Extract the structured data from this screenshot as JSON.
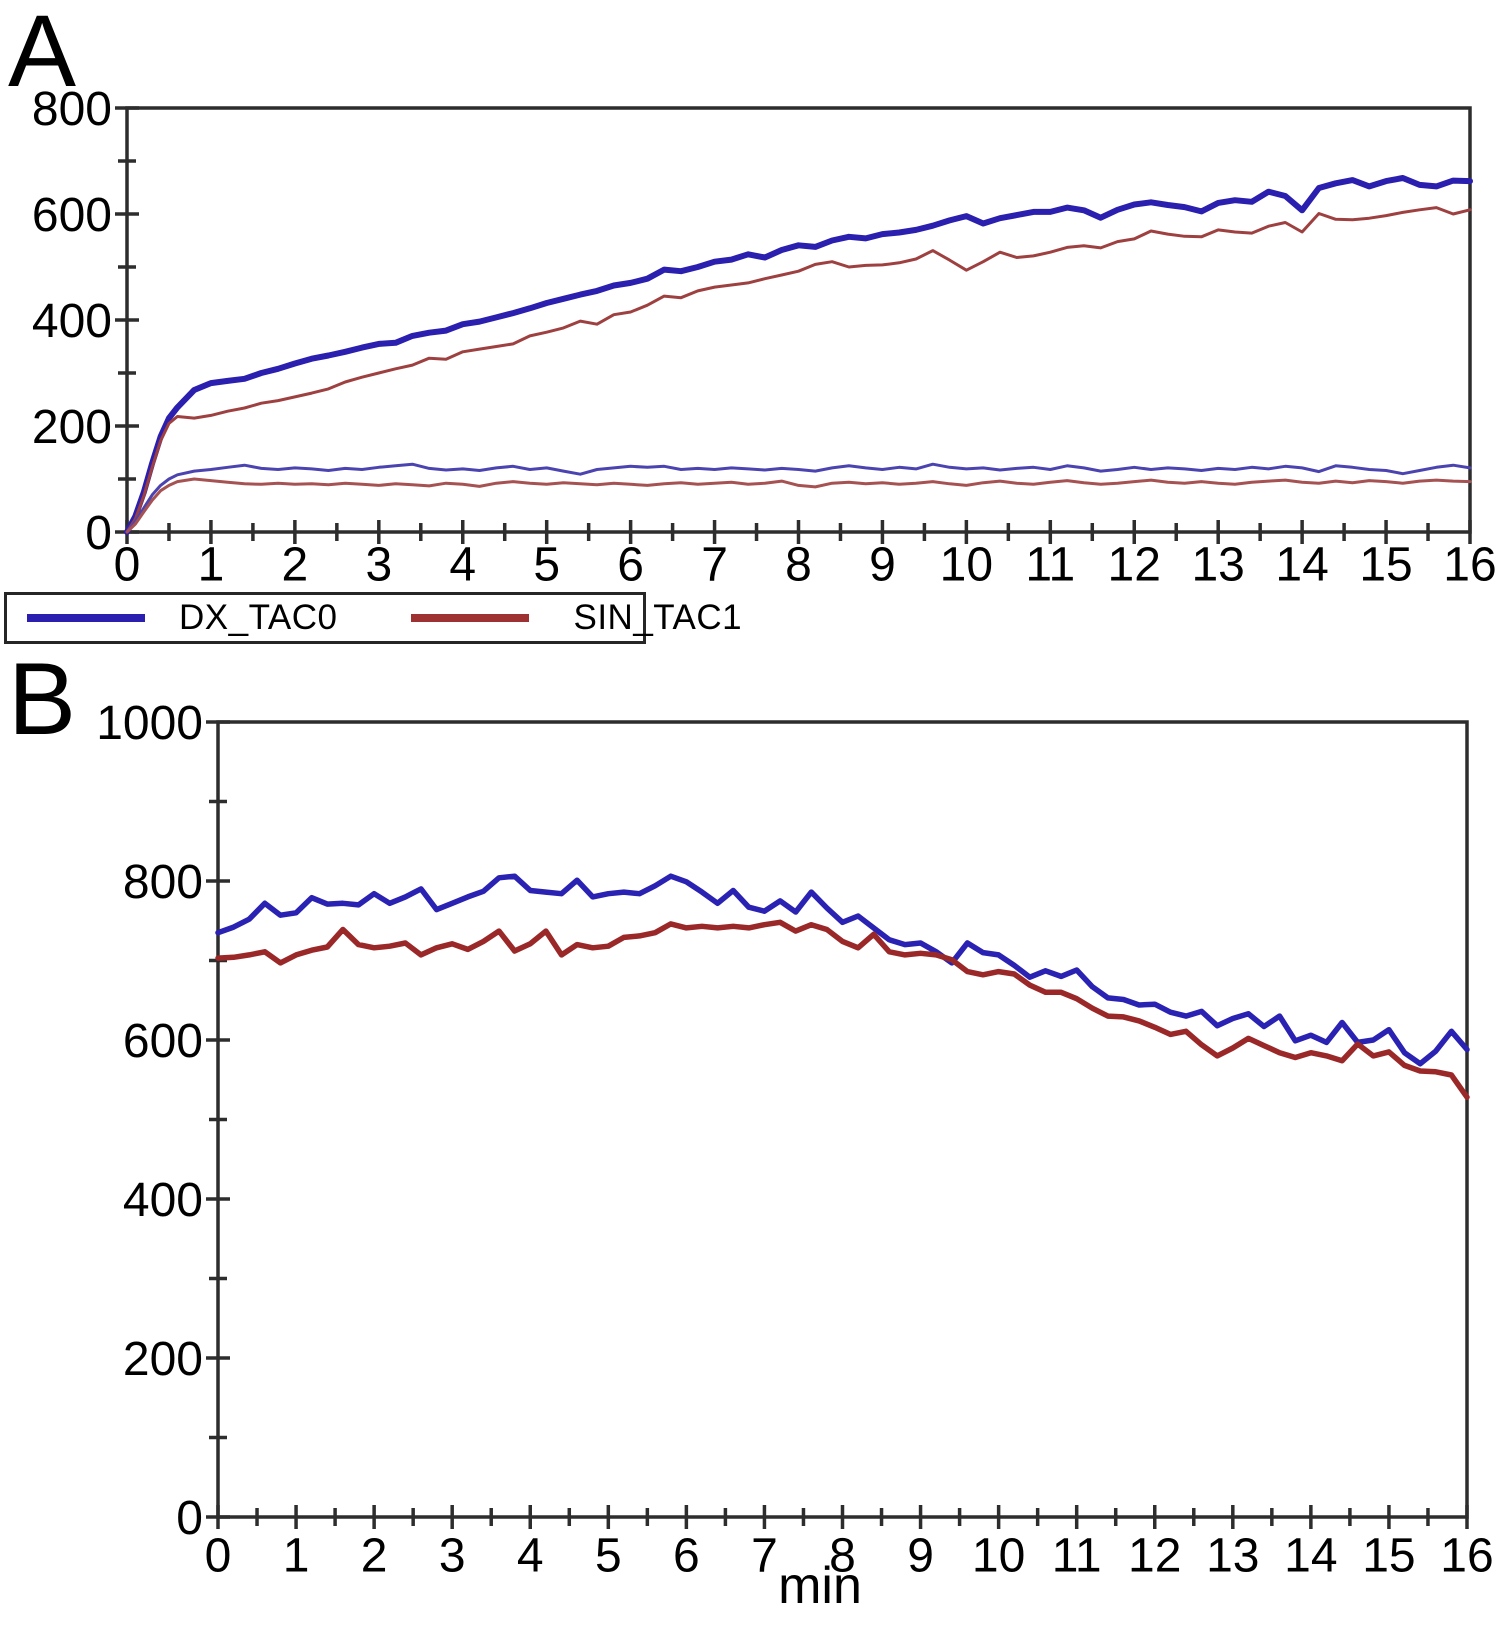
{
  "figure": {
    "panels": [
      {
        "label": "A"
      },
      {
        "label": "B"
      }
    ],
    "legend": {
      "items": [
        {
          "label": "DX_TAC0",
          "color": "#2a1fae"
        },
        {
          "label": "SIN_TAC1",
          "color": "#9e3232"
        }
      ]
    }
  },
  "chart_data": [
    {
      "type": "line",
      "panel": "A",
      "title": "",
      "xlabel": "",
      "ylabel": "",
      "xlim": [
        0,
        16
      ],
      "ylim": [
        0,
        800
      ],
      "x_tick_step": 1,
      "x_minor_step": 0.5,
      "y_minor_step": 100,
      "y_label_step": 200,
      "x_tick_labels": [
        "0",
        "1",
        "2",
        "3",
        "4",
        "5",
        "6",
        "7",
        "8",
        "9",
        "10",
        "11",
        "12",
        "13",
        "14",
        "15",
        "16"
      ],
      "y_tick_labels": [
        "0",
        "200",
        "400",
        "600",
        "800"
      ],
      "grid": false,
      "legend_position": "below-left",
      "x": [
        0,
        0.1,
        0.2,
        0.3,
        0.4,
        0.5,
        0.6,
        0.8,
        1,
        1.2,
        1.4,
        1.6,
        1.8,
        2,
        2.2,
        2.4,
        2.6,
        2.8,
        3,
        3.2,
        3.4,
        3.6,
        3.8,
        4,
        4.2,
        4.4,
        4.6,
        4.8,
        5,
        5.2,
        5.4,
        5.6,
        5.8,
        6,
        6.2,
        6.4,
        6.6,
        6.8,
        7,
        7.2,
        7.4,
        7.6,
        7.8,
        8,
        8.2,
        8.4,
        8.6,
        8.8,
        9,
        9.2,
        9.4,
        9.6,
        9.8,
        10,
        10.2,
        10.4,
        10.6,
        10.8,
        11,
        11.2,
        11.4,
        11.6,
        11.8,
        12,
        12.2,
        12.4,
        12.6,
        12.8,
        13,
        13.2,
        13.4,
        13.6,
        13.8,
        14,
        14.2,
        14.4,
        14.6,
        14.8,
        15,
        15.2,
        15.4,
        15.6,
        15.8,
        16
      ],
      "series": [
        {
          "name": "DX_TAC0",
          "color": "#2a1fae",
          "width": 6,
          "values": [
            0,
            30,
            75,
            130,
            180,
            215,
            235,
            268,
            281,
            285,
            289,
            300,
            308,
            318,
            327,
            333,
            340,
            348,
            355,
            357,
            370,
            376,
            380,
            392,
            397,
            405,
            413,
            422,
            432,
            440,
            448,
            455,
            465,
            470,
            478,
            495,
            492,
            500,
            510,
            514,
            524,
            518,
            532,
            541,
            538,
            550,
            557,
            554,
            562,
            565,
            570,
            578,
            588,
            596,
            582,
            592,
            598,
            604,
            604,
            612,
            607,
            593,
            608,
            618,
            622,
            617,
            613,
            605,
            621,
            626,
            623,
            642,
            634,
            607,
            649,
            658,
            664,
            652,
            662,
            668,
            655,
            652,
            663,
            662
          ]
        },
        {
          "name": "SIN_TAC1",
          "color": "#9e4040",
          "width": 3,
          "values": [
            0,
            25,
            68,
            122,
            172,
            205,
            218,
            215,
            220,
            228,
            234,
            243,
            248,
            255,
            262,
            270,
            283,
            292,
            300,
            308,
            315,
            328,
            326,
            340,
            345,
            350,
            355,
            370,
            377,
            385,
            398,
            392,
            410,
            415,
            428,
            445,
            442,
            455,
            462,
            466,
            470,
            478,
            485,
            492,
            505,
            510,
            500,
            503,
            504,
            508,
            515,
            531,
            513,
            494,
            510,
            528,
            518,
            521,
            528,
            537,
            540,
            536,
            548,
            553,
            568,
            562,
            558,
            557,
            570,
            566,
            564,
            577,
            584,
            566,
            601,
            590,
            589,
            592,
            597,
            603,
            608,
            612,
            600,
            608
          ]
        },
        {
          "name": "unlabeled_blue_low",
          "color": "#4b44b0",
          "width": 3,
          "values": [
            0,
            20,
            45,
            70,
            88,
            100,
            108,
            115,
            118,
            122,
            126,
            120,
            118,
            121,
            119,
            116,
            120,
            118,
            122,
            125,
            128,
            120,
            117,
            119,
            116,
            121,
            124,
            118,
            121,
            115,
            109,
            118,
            121,
            124,
            122,
            124,
            118,
            120,
            118,
            121,
            119,
            117,
            120,
            118,
            115,
            121,
            125,
            121,
            118,
            122,
            119,
            128,
            122,
            119,
            121,
            117,
            120,
            122,
            118,
            125,
            121,
            115,
            118,
            122,
            118,
            121,
            119,
            116,
            120,
            118,
            122,
            119,
            124,
            121,
            114,
            125,
            122,
            118,
            116,
            110,
            116,
            122,
            126,
            121
          ]
        },
        {
          "name": "unlabeled_red_low",
          "color": "#a65252",
          "width": 3,
          "values": [
            0,
            15,
            38,
            60,
            78,
            88,
            95,
            100,
            97,
            94,
            91,
            90,
            92,
            90,
            91,
            89,
            92,
            90,
            88,
            91,
            89,
            87,
            92,
            90,
            86,
            92,
            95,
            92,
            90,
            93,
            91,
            89,
            92,
            90,
            88,
            91,
            93,
            90,
            92,
            94,
            90,
            92,
            96,
            88,
            85,
            92,
            94,
            91,
            93,
            90,
            92,
            95,
            91,
            88,
            93,
            96,
            92,
            90,
            94,
            97,
            93,
            90,
            92,
            95,
            98,
            94,
            92,
            95,
            92,
            90,
            94,
            96,
            98,
            94,
            92,
            96,
            93,
            97,
            95,
            92,
            96,
            98,
            96,
            95
          ]
        }
      ]
    },
    {
      "type": "line",
      "panel": "B",
      "title": "",
      "xlabel": "min",
      "ylabel": "",
      "xlim": [
        0,
        16
      ],
      "ylim": [
        0,
        1000
      ],
      "x_tick_step": 1,
      "x_minor_step": 0.5,
      "y_minor_step": 100,
      "y_label_step": 200,
      "x_tick_labels": [
        "0",
        "1",
        "2",
        "3",
        "4",
        "5",
        "6",
        "7",
        "8",
        "9",
        "10",
        "11",
        "12",
        "13",
        "14",
        "15",
        "16"
      ],
      "y_tick_labels": [
        "0",
        "200",
        "400",
        "600",
        "800",
        "1000"
      ],
      "grid": false,
      "legend_position": "none",
      "x": [
        0,
        0.2,
        0.4,
        0.6,
        0.8,
        1,
        1.2,
        1.4,
        1.6,
        1.8,
        2,
        2.2,
        2.4,
        2.6,
        2.8,
        3,
        3.2,
        3.4,
        3.6,
        3.8,
        4,
        4.2,
        4.4,
        4.6,
        4.8,
        5,
        5.2,
        5.4,
        5.6,
        5.8,
        6,
        6.2,
        6.4,
        6.6,
        6.8,
        7,
        7.2,
        7.4,
        7.6,
        7.8,
        8,
        8.2,
        8.4,
        8.6,
        8.8,
        9,
        9.2,
        9.4,
        9.6,
        9.8,
        10,
        10.2,
        10.4,
        10.6,
        10.8,
        11,
        11.2,
        11.4,
        11.6,
        11.8,
        12,
        12.2,
        12.4,
        12.6,
        12.8,
        13,
        13.2,
        13.4,
        13.6,
        13.8,
        14,
        14.2,
        14.4,
        14.6,
        14.8,
        15,
        15.2,
        15.4,
        15.6,
        15.8,
        16
      ],
      "series": [
        {
          "name": "DX_TAC0",
          "color": "#2a22b2",
          "width": 5.5,
          "values": [
            735,
            742,
            752,
            772,
            757,
            760,
            779,
            771,
            772,
            770,
            784,
            772,
            780,
            790,
            764,
            772,
            780,
            787,
            804,
            806,
            788,
            786,
            784,
            801,
            780,
            784,
            786,
            784,
            794,
            806,
            799,
            786,
            772,
            788,
            767,
            762,
            775,
            761,
            786,
            766,
            748,
            756,
            741,
            726,
            720,
            722,
            711,
            697,
            722,
            710,
            707,
            694,
            679,
            687,
            680,
            688,
            667,
            653,
            651,
            644,
            645,
            635,
            630,
            636,
            618,
            627,
            633,
            617,
            630,
            599,
            606,
            597,
            622,
            597,
            600,
            613,
            584,
            570,
            586,
            611,
            588
          ]
        },
        {
          "name": "SIN_TAC1",
          "color": "#9b2828",
          "width": 5.5,
          "values": [
            703,
            704,
            707,
            711,
            697,
            707,
            713,
            717,
            739,
            720,
            716,
            718,
            722,
            707,
            716,
            721,
            714,
            724,
            737,
            712,
            721,
            737,
            707,
            720,
            716,
            718,
            729,
            731,
            735,
            746,
            741,
            743,
            741,
            743,
            741,
            745,
            748,
            737,
            745,
            739,
            724,
            716,
            733,
            711,
            707,
            709,
            707,
            701,
            686,
            682,
            686,
            683,
            669,
            660,
            660,
            652,
            640,
            630,
            629,
            624,
            616,
            607,
            611,
            594,
            580,
            590,
            602,
            593,
            584,
            578,
            584,
            580,
            574,
            595,
            580,
            585,
            568,
            561,
            560,
            556,
            528
          ]
        }
      ]
    }
  ]
}
